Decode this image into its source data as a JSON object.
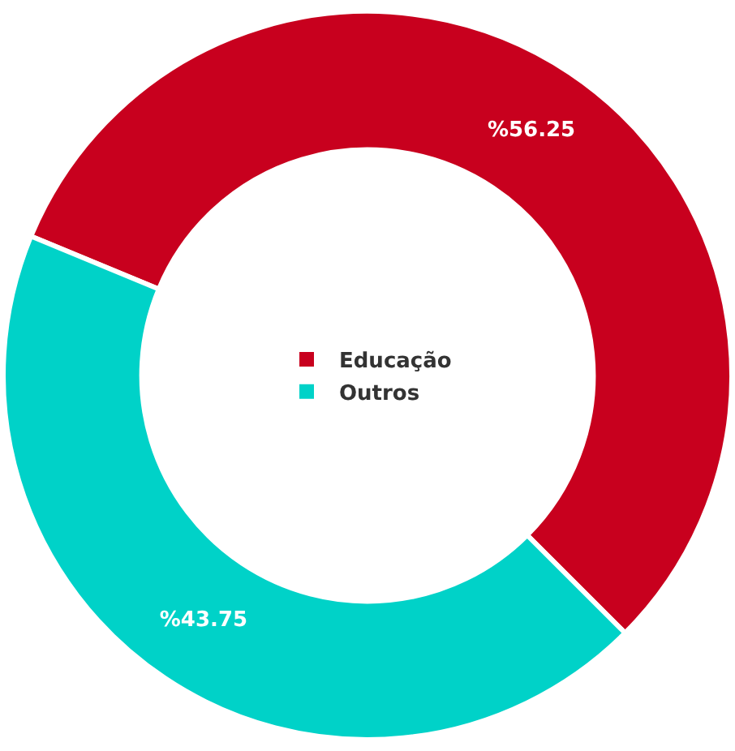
{
  "chart_data": {
    "type": "donut",
    "categories": [
      "Educação",
      "Outros"
    ],
    "values": [
      56.25,
      43.75
    ],
    "colors": [
      "#c8001e",
      "#00d2c8"
    ],
    "value_labels": [
      "%56.25",
      "%43.75"
    ],
    "legend": "center"
  }
}
